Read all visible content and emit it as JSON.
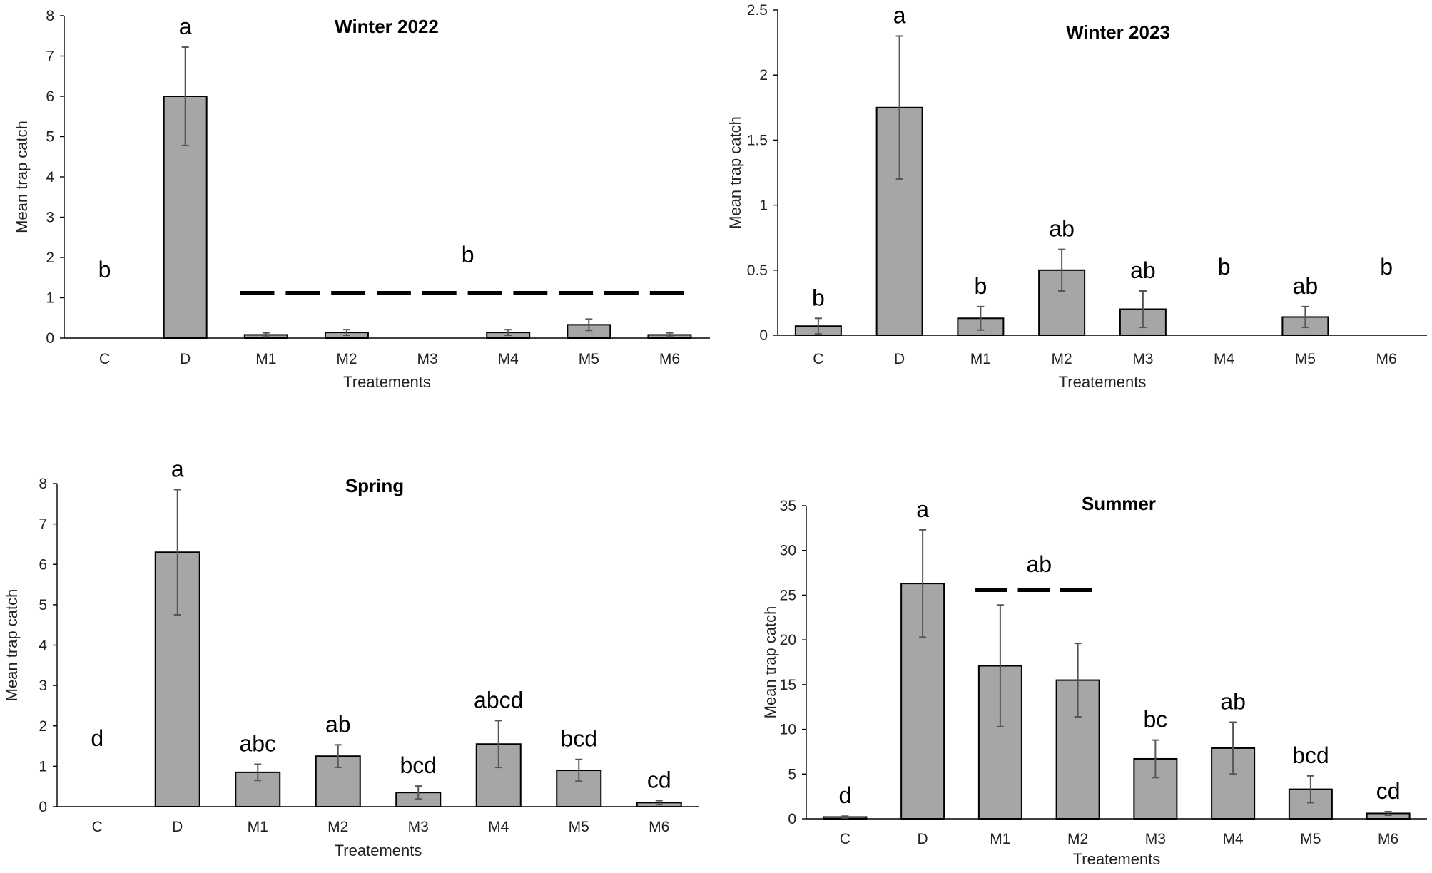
{
  "chart_data": [
    {
      "type": "bar",
      "title": "Winter 2022",
      "xlabel": "Treatements",
      "ylabel": "Mean trap catch",
      "ylim": [
        0,
        8
      ],
      "yticks": [
        "0",
        "1",
        "2",
        "3",
        "4",
        "5",
        "6",
        "7",
        "8"
      ],
      "categories": [
        "C",
        "D",
        "M1",
        "M2",
        "M3",
        "M4",
        "M5",
        "M6"
      ],
      "values": [
        0,
        6.0,
        0.08,
        0.14,
        0,
        0.14,
        0.33,
        0.08
      ],
      "errors": [
        0,
        1.22,
        0.05,
        0.07,
        0,
        0.07,
        0.14,
        0.05
      ],
      "letters": [
        "b",
        "a",
        "",
        "",
        "",
        "",
        "",
        ""
      ],
      "group_label": {
        "text": "b",
        "from": 2,
        "to": 7
      }
    },
    {
      "type": "bar",
      "title": "Winter 2023",
      "xlabel": "Treatements",
      "ylabel": "Mean trap catch",
      "ylim": [
        0,
        2.5
      ],
      "yticks": [
        "0",
        "0.5",
        "1",
        "1.5",
        "2",
        "2.5"
      ],
      "categories": [
        "C",
        "D",
        "M1",
        "M2",
        "M3",
        "M4",
        "M5",
        "M6"
      ],
      "values": [
        0.07,
        1.75,
        0.13,
        0.5,
        0.2,
        0,
        0.14,
        0
      ],
      "errors": [
        0.06,
        0.55,
        0.09,
        0.16,
        0.14,
        0,
        0.08,
        0
      ],
      "letters": [
        "b",
        "a",
        "b",
        "ab",
        "ab",
        "b",
        "ab",
        "b"
      ]
    },
    {
      "type": "bar",
      "title": "Spring",
      "xlabel": "Treatements",
      "ylabel": "Mean trap catch",
      "ylim": [
        0,
        8
      ],
      "yticks": [
        "0",
        "1",
        "2",
        "3",
        "4",
        "5",
        "6",
        "7",
        "8"
      ],
      "categories": [
        "C",
        "D",
        "M1",
        "M2",
        "M3",
        "M4",
        "M5",
        "M6"
      ],
      "values": [
        0,
        6.3,
        0.85,
        1.25,
        0.35,
        1.55,
        0.9,
        0.1
      ],
      "errors": [
        0,
        1.55,
        0.2,
        0.28,
        0.16,
        0.58,
        0.27,
        0.05
      ],
      "letters": [
        "d",
        "a",
        "abc",
        "ab",
        "bcd",
        "abcd",
        "bcd",
        "cd"
      ]
    },
    {
      "type": "bar",
      "title": "Summer",
      "xlabel": "Treatements",
      "ylabel": "Mean trap catch",
      "ylim": [
        0,
        35
      ],
      "yticks": [
        "0",
        "5",
        "10",
        "15",
        "20",
        "25",
        "30",
        "35"
      ],
      "categories": [
        "C",
        "D",
        "M1",
        "M2",
        "M3",
        "M4",
        "M5",
        "M6"
      ],
      "values": [
        0.2,
        26.3,
        17.1,
        15.5,
        6.7,
        7.9,
        3.3,
        0.6
      ],
      "errors": [
        0.1,
        6.0,
        6.8,
        4.1,
        2.1,
        2.9,
        1.5,
        0.2
      ],
      "letters": [
        "d",
        "a",
        "",
        "",
        "bc",
        "ab",
        "bcd",
        "cd"
      ],
      "group_label": {
        "text": "ab",
        "from": 2,
        "to": 3
      }
    }
  ]
}
